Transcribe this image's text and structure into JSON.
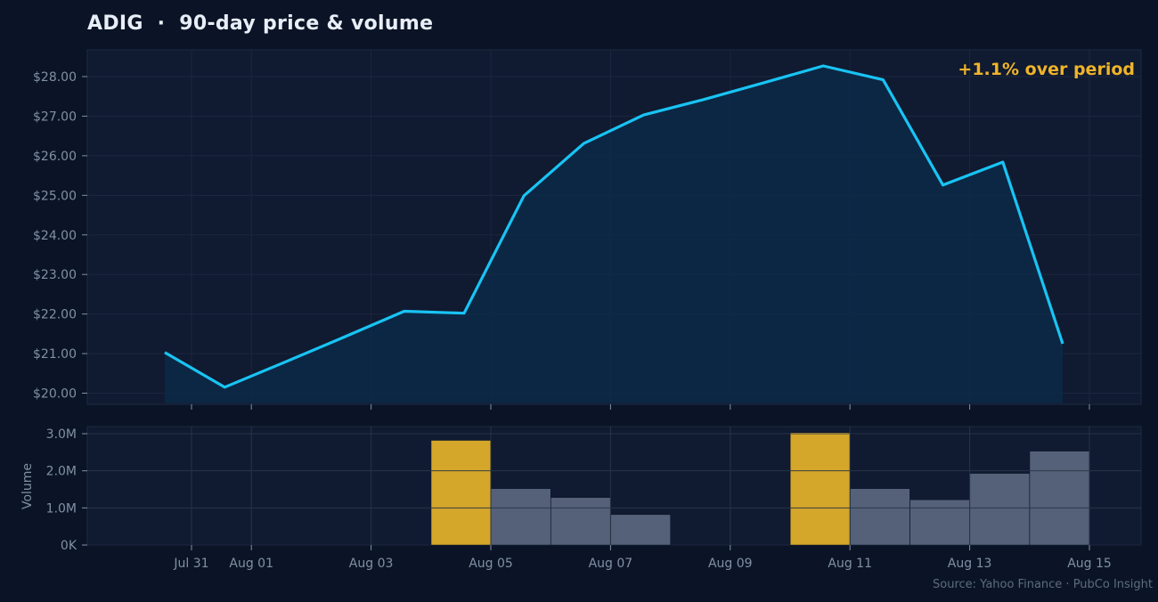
{
  "title": "ADIG  ·  90-day price & volume",
  "source": "Source: Yahoo Finance · PubCo Insight",
  "colors": {
    "background": "#0b1426",
    "panel": "#101a30",
    "price_line": "#18c4f4",
    "volume_bar": "#546178",
    "volume_highlight": "#d4a62a",
    "change_text": "#f0b429"
  },
  "chart_data": [
    {
      "type": "area",
      "annotation": "+1.1% over period",
      "x": [
        "Jul 31",
        "Aug 01",
        "Aug 02",
        "Aug 03",
        "Aug 04",
        "Aug 05",
        "Aug 06",
        "Aug 07",
        "Aug 08",
        "Aug 09",
        "Aug 10",
        "Aug 11",
        "Aug 12",
        "Aug 13",
        "Aug 14",
        "Aug 15"
      ],
      "series": [
        {
          "values": [
            21.03,
            20.15,
            20.78,
            21.42,
            22.07,
            22.02,
            24.99,
            26.31,
            27.03,
            27.42,
            27.84,
            28.27,
            27.92,
            25.26,
            25.84,
            21.25
          ]
        }
      ],
      "xticks": [
        "Jul 31",
        "Aug 01",
        "Aug 03",
        "Aug 05",
        "Aug 07",
        "Aug 09",
        "Aug 11",
        "Aug 13",
        "Aug 15"
      ],
      "yticks": [
        "$20.00",
        "$21.00",
        "$22.00",
        "$23.00",
        "$24.00",
        "$25.00",
        "$26.00",
        "$27.00",
        "$28.00"
      ],
      "ylim": [
        19.75,
        28.6
      ],
      "grid": true
    },
    {
      "type": "bar",
      "ylabel": "Volume",
      "bars": [
        {
          "date": "Aug 05",
          "value": 2.82,
          "highlight": true
        },
        {
          "date": "Aug 06",
          "value": 1.52,
          "highlight": false
        },
        {
          "date": "Aug 07",
          "value": 1.28,
          "highlight": false
        },
        {
          "date": "Aug 08",
          "value": 0.82,
          "highlight": false
        },
        {
          "date": "Aug 11",
          "value": 3.03,
          "highlight": true
        },
        {
          "date": "Aug 12",
          "value": 1.52,
          "highlight": false
        },
        {
          "date": "Aug 13",
          "value": 1.22,
          "highlight": false
        },
        {
          "date": "Aug 14",
          "value": 1.93,
          "highlight": false
        },
        {
          "date": "Aug 15",
          "value": 2.53,
          "highlight": false
        }
      ],
      "yticks": [
        "0K",
        "1.0M",
        "2.0M",
        "3.0M"
      ],
      "ylim": [
        0,
        3.15
      ],
      "xticks": [
        "Jul 31",
        "Aug 01",
        "Aug 03",
        "Aug 05",
        "Aug 07",
        "Aug 09",
        "Aug 11",
        "Aug 13",
        "Aug 15"
      ],
      "grid": true
    }
  ]
}
